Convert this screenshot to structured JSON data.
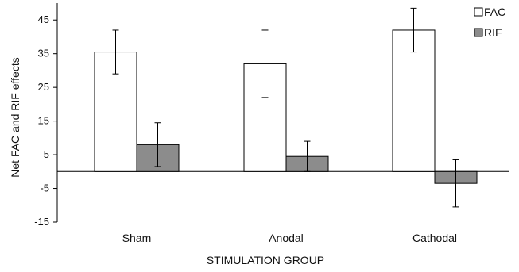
{
  "chart_data": {
    "type": "bar",
    "title": "",
    "xlabel": "STIMULATION GROUP",
    "ylabel": "Net FAC and RIF effects",
    "categories": [
      "Sham",
      "Anodal",
      "Cathodal"
    ],
    "ylim": [
      -15,
      50
    ],
    "yticks": [
      -15,
      -5,
      5,
      15,
      25,
      35,
      45
    ],
    "ytick_labels": [
      "-15",
      "-5",
      "5",
      "15",
      "25",
      "35",
      "45"
    ],
    "grid": false,
    "legend_position": "top-right",
    "series": [
      {
        "name": "FAC",
        "color": "#ffffff",
        "values": [
          35.5,
          32,
          42
        ],
        "errors": [
          6.5,
          10,
          6.5
        ]
      },
      {
        "name": "RIF",
        "color": "#8c8c8c",
        "values": [
          8,
          4.5,
          -3.5
        ],
        "errors": [
          6.5,
          4.5,
          7
        ]
      }
    ]
  }
}
